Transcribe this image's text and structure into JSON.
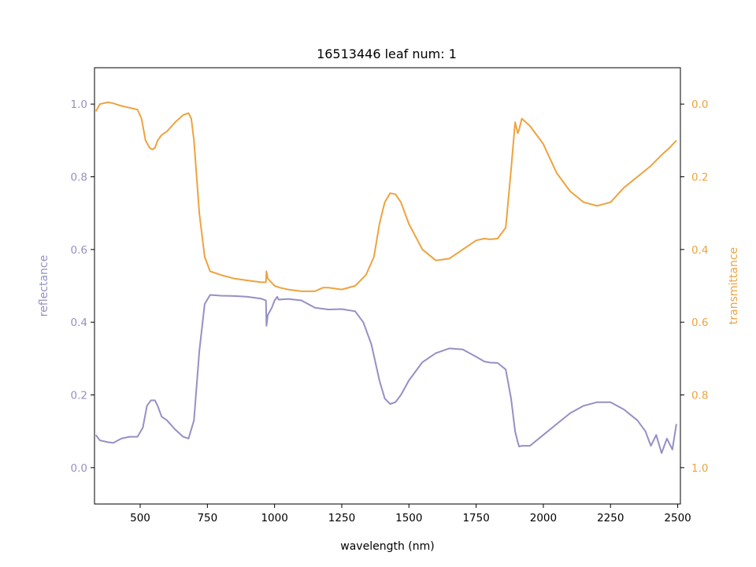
{
  "chart_data": {
    "type": "line",
    "title": "16513446 leaf num: 1",
    "xlabel": "wavelength (nm)",
    "xlim": [
      330,
      2510
    ],
    "x_ticks": [
      500,
      750,
      1000,
      1250,
      1500,
      1750,
      2000,
      2250,
      2500
    ],
    "x_tick_labels": [
      "500",
      "750",
      "1000",
      "1250",
      "1500",
      "1750",
      "2000",
      "2250",
      "2500"
    ],
    "left_axis": {
      "label": "reflectance",
      "lim": [
        -0.1,
        1.1
      ],
      "ticks": [
        0.0,
        0.2,
        0.4,
        0.6,
        0.8,
        1.0
      ],
      "tick_labels": [
        "0.0",
        "0.2",
        "0.4",
        "0.6",
        "0.8",
        "1.0"
      ],
      "color": "#9590c4"
    },
    "right_axis": {
      "label": "transmittance",
      "lim": [
        1.1,
        -0.1
      ],
      "inverted": true,
      "ticks": [
        0.0,
        0.2,
        0.4,
        0.6,
        0.8,
        1.0
      ],
      "tick_labels": [
        "0.0",
        "0.2",
        "0.4",
        "0.6",
        "0.8",
        "1.0"
      ],
      "color": "#eda33f"
    },
    "series": [
      {
        "axis": "left",
        "color": "#9590c4",
        "x": [
          335,
          350,
          380,
          400,
          430,
          460,
          490,
          510,
          525,
          540,
          555,
          565,
          580,
          600,
          630,
          660,
          680,
          700,
          720,
          740,
          760,
          800,
          850,
          900,
          950,
          968,
          970,
          975,
          990,
          1000,
          1010,
          1015,
          1050,
          1100,
          1150,
          1200,
          1250,
          1300,
          1330,
          1360,
          1390,
          1410,
          1430,
          1450,
          1470,
          1500,
          1550,
          1600,
          1650,
          1700,
          1750,
          1780,
          1800,
          1830,
          1860,
          1880,
          1895,
          1905,
          1910,
          1920,
          1950,
          2000,
          2050,
          2100,
          2150,
          2200,
          2250,
          2300,
          2350,
          2380,
          2400,
          2420,
          2440,
          2460,
          2480,
          2495
        ],
        "y": [
          0.09,
          0.075,
          0.07,
          0.068,
          0.08,
          0.085,
          0.085,
          0.11,
          0.17,
          0.185,
          0.185,
          0.17,
          0.14,
          0.13,
          0.105,
          0.085,
          0.08,
          0.13,
          0.32,
          0.45,
          0.475,
          0.473,
          0.472,
          0.47,
          0.465,
          0.46,
          0.39,
          0.42,
          0.44,
          0.46,
          0.47,
          0.462,
          0.464,
          0.46,
          0.44,
          0.435,
          0.436,
          0.43,
          0.4,
          0.34,
          0.24,
          0.19,
          0.175,
          0.18,
          0.2,
          0.24,
          0.29,
          0.315,
          0.328,
          0.325,
          0.305,
          0.292,
          0.289,
          0.288,
          0.27,
          0.19,
          0.1,
          0.07,
          0.058,
          0.06,
          0.06,
          0.09,
          0.12,
          0.15,
          0.17,
          0.18,
          0.18,
          0.16,
          0.13,
          0.1,
          0.06,
          0.09,
          0.04,
          0.08,
          0.05,
          0.12
        ]
      },
      {
        "axis": "right",
        "color": "#eda33f",
        "x": [
          335,
          350,
          380,
          400,
          430,
          460,
          490,
          505,
          520,
          535,
          545,
          555,
          565,
          580,
          600,
          630,
          660,
          680,
          690,
          700,
          720,
          740,
          760,
          800,
          850,
          900,
          950,
          968,
          970,
          975,
          1000,
          1020,
          1050,
          1100,
          1150,
          1180,
          1200,
          1250,
          1300,
          1340,
          1370,
          1390,
          1410,
          1430,
          1450,
          1470,
          1500,
          1550,
          1600,
          1650,
          1700,
          1750,
          1780,
          1800,
          1830,
          1860,
          1880,
          1895,
          1905,
          1910,
          1920,
          1950,
          2000,
          2050,
          2100,
          2150,
          2200,
          2250,
          2300,
          2350,
          2400,
          2440,
          2470,
          2495
        ],
        "y": [
          0.02,
          0.0,
          -0.005,
          -0.002,
          0.005,
          0.01,
          0.015,
          0.04,
          0.1,
          0.12,
          0.125,
          0.12,
          0.1,
          0.085,
          0.075,
          0.05,
          0.03,
          0.025,
          0.04,
          0.1,
          0.3,
          0.42,
          0.46,
          0.47,
          0.48,
          0.485,
          0.49,
          0.49,
          0.46,
          0.48,
          0.5,
          0.505,
          0.51,
          0.515,
          0.515,
          0.505,
          0.505,
          0.51,
          0.5,
          0.47,
          0.42,
          0.33,
          0.27,
          0.245,
          0.248,
          0.27,
          0.33,
          0.4,
          0.43,
          0.425,
          0.4,
          0.375,
          0.37,
          0.372,
          0.37,
          0.34,
          0.18,
          0.05,
          0.08,
          0.07,
          0.04,
          0.06,
          0.11,
          0.19,
          0.24,
          0.27,
          0.28,
          0.27,
          0.23,
          0.2,
          0.17,
          0.14,
          0.12,
          0.1
        ]
      }
    ]
  }
}
